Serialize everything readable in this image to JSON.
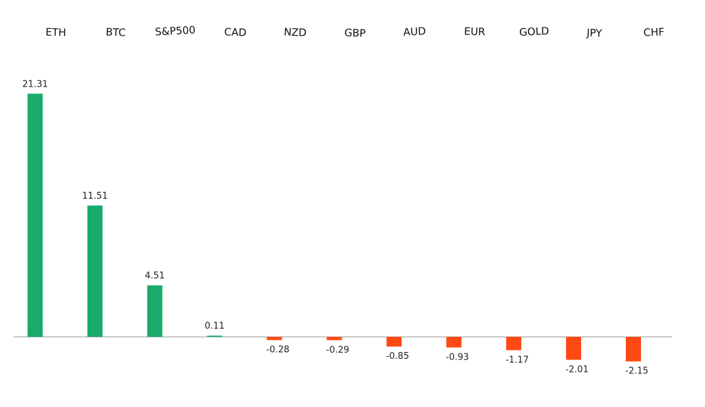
{
  "chart_data": {
    "type": "bar",
    "title": "",
    "xlabel": "",
    "ylabel": "",
    "categories": [
      "ETH",
      "BTC",
      "S&P500",
      "CAD",
      "NZD",
      "GBP",
      "AUD",
      "EUR",
      "GOLD",
      "JPY",
      "CHF"
    ],
    "values": [
      21.31,
      11.51,
      4.51,
      0.11,
      -0.28,
      -0.29,
      -0.85,
      -0.93,
      -1.17,
      -2.01,
      -2.15
    ],
    "value_labels": [
      "21.31",
      "11.51",
      "4.51",
      "0.11",
      "-0.28",
      "-0.29",
      "-0.85",
      "-0.93",
      "-1.17",
      "-2.01",
      "-2.15"
    ],
    "ylim": [
      -2.5,
      25
    ],
    "grid": false,
    "legend": "none",
    "category_axis_position": "top",
    "colors": {
      "positive": "#1aab6b",
      "negative": "#ff4a14",
      "baseline": "#a6a6a6"
    }
  }
}
